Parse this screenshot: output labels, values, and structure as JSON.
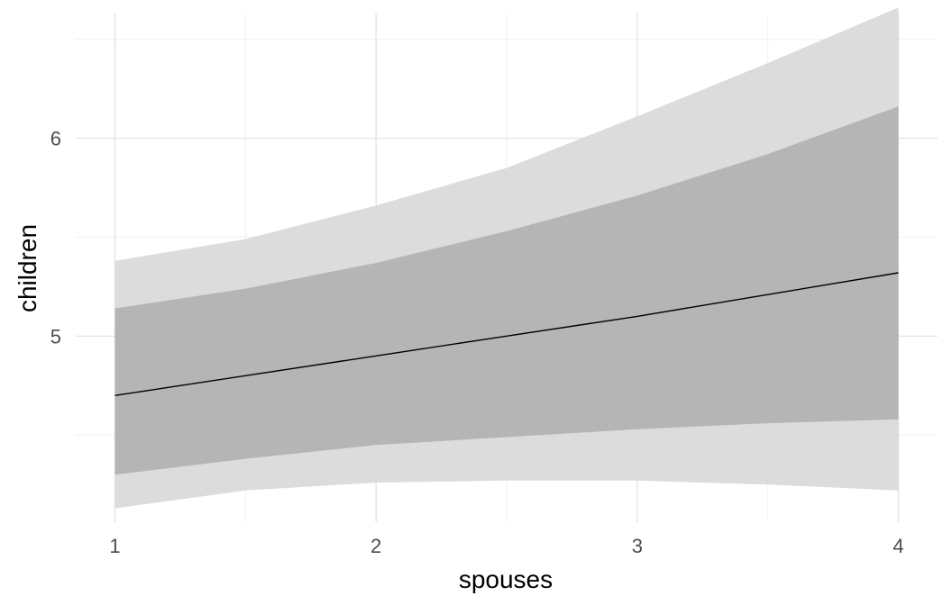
{
  "chart_data": {
    "type": "area",
    "xlabel": "spouses",
    "ylabel": "children",
    "xlim": [
      0.85,
      4.15
    ],
    "ylim": [
      4.06,
      6.63
    ],
    "x_ticks": [
      1,
      2,
      3,
      4
    ],
    "x_tick_labels": [
      "1",
      "2",
      "3",
      "4"
    ],
    "y_ticks": [
      5,
      6
    ],
    "y_tick_labels": [
      "5",
      "6"
    ],
    "x_minor": [
      1.5,
      2.5,
      3.5
    ],
    "y_minor": [
      4.5,
      5.5,
      6.5
    ],
    "grid": true,
    "x": [
      1.0,
      1.5,
      2.0,
      2.5,
      3.0,
      3.5,
      4.0
    ],
    "line": {
      "values": [
        4.7,
        4.8,
        4.9,
        5.0,
        5.1,
        5.21,
        5.32
      ],
      "color": "#000000"
    },
    "inner_band": {
      "lower": [
        4.3,
        4.38,
        4.45,
        4.49,
        4.53,
        4.56,
        4.58
      ],
      "upper": [
        5.14,
        5.24,
        5.37,
        5.53,
        5.71,
        5.92,
        6.16
      ],
      "color": "#b0b0b0"
    },
    "outer_band": {
      "lower": [
        4.13,
        4.22,
        4.26,
        4.27,
        4.27,
        4.25,
        4.22
      ],
      "upper": [
        5.38,
        5.49,
        5.66,
        5.85,
        6.11,
        6.38,
        6.66
      ],
      "color": "#d6d6d6"
    }
  }
}
